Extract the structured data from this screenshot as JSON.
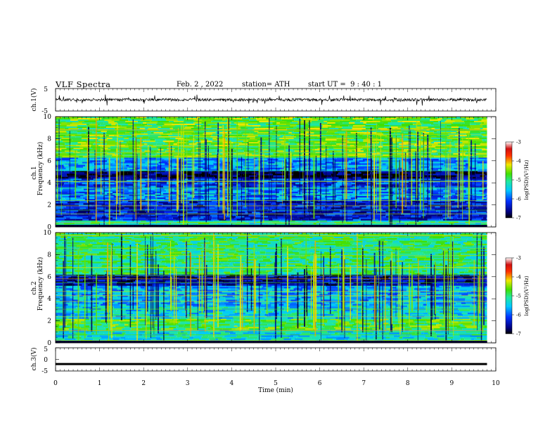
{
  "header": {
    "title": "VLF Spectra",
    "date": "Feb. 2 , 2022",
    "station": "station= ATH",
    "start": "start UT =  9 : 40 : 1"
  },
  "chart_data": [
    {
      "type": "line",
      "ylabel": "ch.1(V)",
      "ylim": [
        -5,
        5
      ],
      "yticks": [
        "5",
        "-5"
      ],
      "xlim": [
        0,
        10
      ],
      "description_of_series": "noisy waveform around 0 V with spikes",
      "baseline": 0
    },
    {
      "type": "heatmap",
      "ylabel_top": "ch.1",
      "ylabel": "Frequency (kHz)",
      "ylim": [
        0,
        10
      ],
      "yticks": [
        "0",
        "2",
        "4",
        "6",
        "8",
        "10"
      ],
      "xlim": [
        0,
        10
      ],
      "data_end_min": 9.8,
      "colorbar": {
        "label": "log(PSD)(V²/Hz)",
        "range": [
          -7,
          -3
        ],
        "ticks": [
          "-3",
          "-4",
          "-5",
          "-6",
          "-7"
        ]
      },
      "bands_khz": [
        {
          "from": 0,
          "to": 0.6,
          "level": "mixed"
        },
        {
          "from": 0.6,
          "to": 2.4,
          "level": -6.3
        },
        {
          "from": 2.4,
          "to": 3.6,
          "level": -5.8
        },
        {
          "from": 3.6,
          "to": 4.4,
          "level": -6.1
        },
        {
          "from": 4.4,
          "to": 5.1,
          "level": -6.8
        },
        {
          "from": 5.1,
          "to": 6.3,
          "level": -5.7
        },
        {
          "from": 6.3,
          "to": 10,
          "level": -4.7
        }
      ]
    },
    {
      "type": "heatmap",
      "ylabel_top": "ch.2",
      "ylabel": "Frequency (kHz)",
      "ylim": [
        0,
        10
      ],
      "yticks": [
        "0",
        "2",
        "4",
        "6",
        "8",
        "10"
      ],
      "xlim": [
        0,
        10
      ],
      "data_end_min": 9.8,
      "colorbar": {
        "label": "log(PSD)(V²/Hz)",
        "range": [
          -7,
          -3
        ],
        "ticks": [
          "-3",
          "-4",
          "-5",
          "-6",
          "-7"
        ]
      },
      "bands_khz": [
        {
          "from": 0,
          "to": 1.2,
          "level": -5.3
        },
        {
          "from": 1.2,
          "to": 2.2,
          "level": -4.8
        },
        {
          "from": 2.2,
          "to": 3.4,
          "level": -5.4
        },
        {
          "from": 3.4,
          "to": 5.2,
          "level": -5.6
        },
        {
          "from": 5.2,
          "to": 6.2,
          "level": -6.5
        },
        {
          "from": 6.2,
          "to": 10,
          "level": -5.0
        }
      ]
    },
    {
      "type": "line",
      "ylabel": "ch.3(V)",
      "ylim": [
        -5,
        5
      ],
      "yticks": [
        "5",
        "0",
        "-5"
      ],
      "xlim": [
        0,
        10
      ],
      "xlabel": "Time (min)",
      "xticks": [
        "0",
        "1",
        "2",
        "3",
        "4",
        "5",
        "6",
        "7",
        "8",
        "9",
        "10"
      ],
      "baseline": -2
    }
  ]
}
